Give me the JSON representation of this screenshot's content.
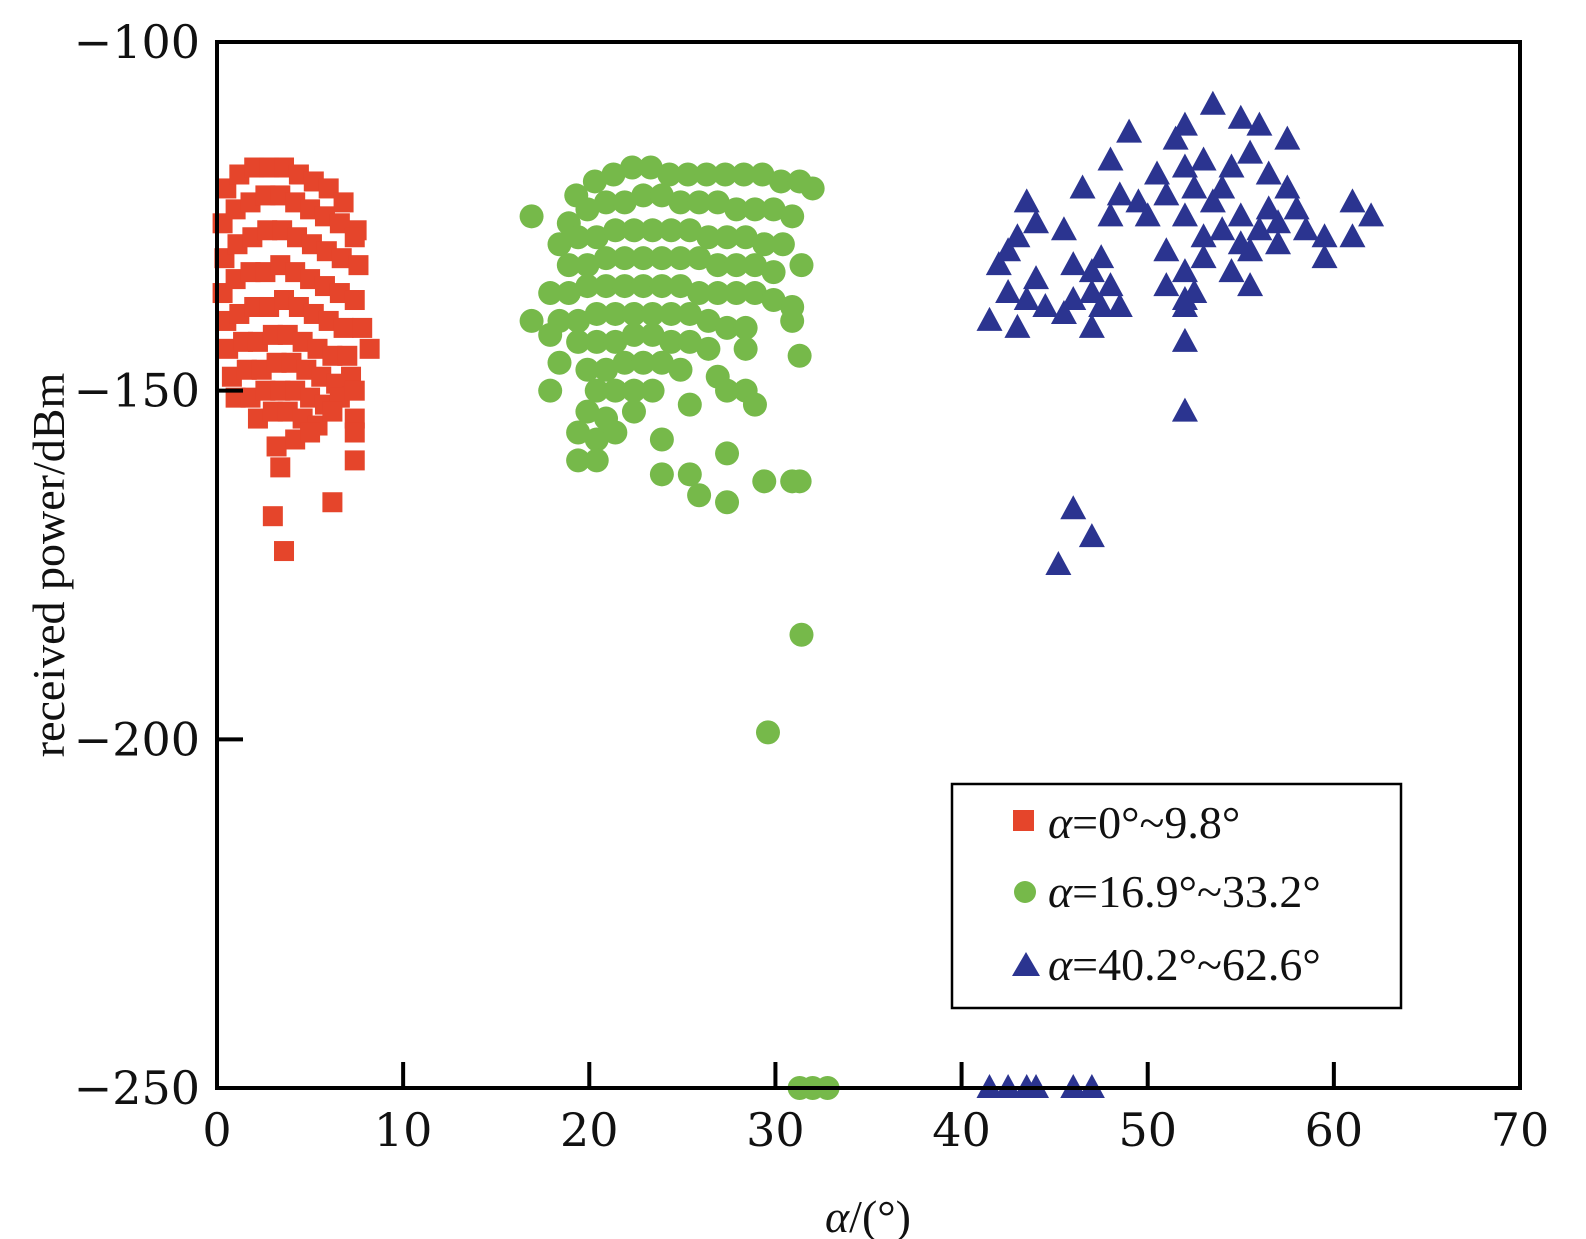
{
  "chart_data": {
    "type": "scatter",
    "title": "",
    "xlabel": "α/(°)",
    "ylabel": "received power/dBm",
    "xlim": [
      0,
      70
    ],
    "ylim": [
      -250,
      -100
    ],
    "xticks": [
      "0",
      "10",
      "20",
      "30",
      "40",
      "50",
      "60",
      "70"
    ],
    "yticks": [
      "−100",
      "−150",
      "−200",
      "−250"
    ],
    "grid": false,
    "legend_position": "lower-right",
    "series": [
      {
        "name": "α=0°~9.8°",
        "marker": "square",
        "color": "#e5452b",
        "points": [
          [
            0.5,
            -121
          ],
          [
            1.2,
            -119
          ],
          [
            2.0,
            -118
          ],
          [
            2.8,
            -118
          ],
          [
            3.6,
            -118
          ],
          [
            4.4,
            -119
          ],
          [
            5.2,
            -120
          ],
          [
            6.0,
            -121
          ],
          [
            6.8,
            -123
          ],
          [
            7.5,
            -127
          ],
          [
            0.3,
            -126
          ],
          [
            1.0,
            -124
          ],
          [
            1.8,
            -123
          ],
          [
            2.6,
            -122
          ],
          [
            3.4,
            -122
          ],
          [
            4.2,
            -123
          ],
          [
            5.0,
            -124
          ],
          [
            5.8,
            -125
          ],
          [
            6.6,
            -126
          ],
          [
            7.4,
            -128
          ],
          [
            0.4,
            -131
          ],
          [
            1.1,
            -129
          ],
          [
            1.9,
            -128
          ],
          [
            2.7,
            -127
          ],
          [
            3.5,
            -127
          ],
          [
            4.3,
            -128
          ],
          [
            5.1,
            -129
          ],
          [
            5.9,
            -130
          ],
          [
            6.7,
            -131
          ],
          [
            7.6,
            -132
          ],
          [
            0.3,
            -136
          ],
          [
            1.0,
            -134
          ],
          [
            1.8,
            -133
          ],
          [
            2.6,
            -133
          ],
          [
            3.4,
            -132
          ],
          [
            4.2,
            -133
          ],
          [
            5.0,
            -134
          ],
          [
            5.8,
            -135
          ],
          [
            6.6,
            -136
          ],
          [
            7.4,
            -137
          ],
          [
            0.5,
            -140
          ],
          [
            1.2,
            -139
          ],
          [
            2.0,
            -138
          ],
          [
            2.8,
            -138
          ],
          [
            3.6,
            -137
          ],
          [
            4.4,
            -138
          ],
          [
            5.2,
            -139
          ],
          [
            6.0,
            -140
          ],
          [
            6.8,
            -141
          ],
          [
            7.8,
            -141
          ],
          [
            0.6,
            -144
          ],
          [
            1.4,
            -143
          ],
          [
            2.2,
            -143
          ],
          [
            3.0,
            -142
          ],
          [
            3.8,
            -142
          ],
          [
            4.6,
            -143
          ],
          [
            5.4,
            -144
          ],
          [
            6.2,
            -145
          ],
          [
            7.0,
            -145
          ],
          [
            8.2,
            -144
          ],
          [
            0.8,
            -148
          ],
          [
            1.6,
            -147
          ],
          [
            2.4,
            -147
          ],
          [
            3.2,
            -146
          ],
          [
            4.0,
            -146
          ],
          [
            4.8,
            -147
          ],
          [
            5.6,
            -148
          ],
          [
            6.4,
            -149
          ],
          [
            7.2,
            -148
          ],
          [
            1.0,
            -151
          ],
          [
            1.8,
            -151
          ],
          [
            2.6,
            -150
          ],
          [
            3.4,
            -150
          ],
          [
            4.2,
            -150
          ],
          [
            5.0,
            -151
          ],
          [
            5.8,
            -152
          ],
          [
            6.6,
            -151
          ],
          [
            7.4,
            -150
          ],
          [
            2.2,
            -154
          ],
          [
            3.0,
            -153
          ],
          [
            3.8,
            -153
          ],
          [
            4.6,
            -154
          ],
          [
            5.4,
            -155
          ],
          [
            6.2,
            -153
          ],
          [
            7.4,
            -154
          ],
          [
            3.2,
            -158
          ],
          [
            4.2,
            -157
          ],
          [
            5.0,
            -156
          ],
          [
            7.4,
            -156
          ],
          [
            7.4,
            -160
          ],
          [
            3.4,
            -161
          ],
          [
            3.0,
            -168
          ],
          [
            6.2,
            -166
          ],
          [
            3.6,
            -173
          ]
        ]
      },
      {
        "name": "α=16.9°~33.2°",
        "marker": "circle",
        "color": "#76b94a",
        "points": [
          [
            19.3,
            -122
          ],
          [
            20.3,
            -120
          ],
          [
            21.3,
            -119
          ],
          [
            22.3,
            -118
          ],
          [
            23.3,
            -118
          ],
          [
            24.3,
            -119
          ],
          [
            25.3,
            -119
          ],
          [
            26.3,
            -119
          ],
          [
            27.3,
            -119
          ],
          [
            28.3,
            -119
          ],
          [
            29.3,
            -119
          ],
          [
            30.3,
            -120
          ],
          [
            31.3,
            -120
          ],
          [
            32.0,
            -121
          ],
          [
            16.9,
            -125
          ],
          [
            18.9,
            -126
          ],
          [
            19.9,
            -124
          ],
          [
            20.9,
            -123
          ],
          [
            21.9,
            -123
          ],
          [
            22.9,
            -122
          ],
          [
            23.9,
            -122
          ],
          [
            24.9,
            -123
          ],
          [
            25.9,
            -123
          ],
          [
            26.9,
            -123
          ],
          [
            27.9,
            -124
          ],
          [
            28.9,
            -124
          ],
          [
            29.9,
            -124
          ],
          [
            30.9,
            -125
          ],
          [
            18.4,
            -129
          ],
          [
            19.4,
            -128
          ],
          [
            20.4,
            -128
          ],
          [
            21.4,
            -127
          ],
          [
            22.4,
            -127
          ],
          [
            23.4,
            -127
          ],
          [
            24.4,
            -127
          ],
          [
            25.4,
            -127
          ],
          [
            26.4,
            -128
          ],
          [
            27.4,
            -128
          ],
          [
            28.4,
            -128
          ],
          [
            29.4,
            -129
          ],
          [
            30.4,
            -129
          ],
          [
            18.9,
            -132
          ],
          [
            19.9,
            -132
          ],
          [
            20.9,
            -131
          ],
          [
            21.9,
            -131
          ],
          [
            22.9,
            -131
          ],
          [
            23.9,
            -131
          ],
          [
            24.9,
            -131
          ],
          [
            25.9,
            -131
          ],
          [
            26.9,
            -132
          ],
          [
            27.9,
            -132
          ],
          [
            28.9,
            -132
          ],
          [
            29.9,
            -133
          ],
          [
            31.4,
            -132
          ],
          [
            17.9,
            -136
          ],
          [
            18.9,
            -136
          ],
          [
            19.9,
            -135
          ],
          [
            20.9,
            -135
          ],
          [
            21.9,
            -135
          ],
          [
            22.9,
            -135
          ],
          [
            23.9,
            -135
          ],
          [
            24.9,
            -135
          ],
          [
            25.9,
            -136
          ],
          [
            26.9,
            -136
          ],
          [
            27.9,
            -136
          ],
          [
            28.9,
            -136
          ],
          [
            29.9,
            -137
          ],
          [
            30.9,
            -138
          ],
          [
            18.4,
            -140
          ],
          [
            19.4,
            -140
          ],
          [
            20.4,
            -139
          ],
          [
            21.4,
            -139
          ],
          [
            22.4,
            -139
          ],
          [
            23.4,
            -139
          ],
          [
            24.4,
            -139
          ],
          [
            25.4,
            -139
          ],
          [
            26.4,
            -140
          ],
          [
            27.4,
            -141
          ],
          [
            28.4,
            -141
          ],
          [
            30.9,
            -140
          ],
          [
            16.9,
            -140
          ],
          [
            17.9,
            -142
          ],
          [
            19.4,
            -143
          ],
          [
            20.4,
            -143
          ],
          [
            21.4,
            -143
          ],
          [
            22.4,
            -142
          ],
          [
            23.4,
            -142
          ],
          [
            24.4,
            -143
          ],
          [
            25.4,
            -143
          ],
          [
            26.4,
            -144
          ],
          [
            28.4,
            -144
          ],
          [
            18.4,
            -146
          ],
          [
            19.9,
            -147
          ],
          [
            20.9,
            -147
          ],
          [
            21.9,
            -146
          ],
          [
            22.9,
            -146
          ],
          [
            23.9,
            -146
          ],
          [
            24.9,
            -147
          ],
          [
            26.9,
            -148
          ],
          [
            31.3,
            -145
          ],
          [
            17.9,
            -150
          ],
          [
            20.4,
            -150
          ],
          [
            21.4,
            -150
          ],
          [
            22.4,
            -150
          ],
          [
            23.4,
            -150
          ],
          [
            27.4,
            -150
          ],
          [
            28.4,
            -150
          ],
          [
            19.9,
            -153
          ],
          [
            20.9,
            -154
          ],
          [
            22.4,
            -153
          ],
          [
            25.4,
            -152
          ],
          [
            28.9,
            -152
          ],
          [
            19.4,
            -156
          ],
          [
            20.4,
            -157
          ],
          [
            21.4,
            -156
          ],
          [
            23.9,
            -157
          ],
          [
            19.4,
            -160
          ],
          [
            20.4,
            -160
          ],
          [
            27.4,
            -159
          ],
          [
            23.9,
            -162
          ],
          [
            25.4,
            -162
          ],
          [
            29.4,
            -163
          ],
          [
            30.9,
            -163
          ],
          [
            31.3,
            -163
          ],
          [
            25.9,
            -165
          ],
          [
            27.4,
            -166
          ],
          [
            31.4,
            -185
          ],
          [
            29.6,
            -199
          ],
          [
            31.3,
            -250
          ],
          [
            32.0,
            -250
          ],
          [
            32.8,
            -250
          ]
        ]
      },
      {
        "name": "α=40.2°~62.6°",
        "marker": "triangle",
        "color": "#2b3490",
        "points": [
          [
            53.5,
            -109
          ],
          [
            55.0,
            -111
          ],
          [
            56.0,
            -112
          ],
          [
            52.0,
            -112
          ],
          [
            49.0,
            -113
          ],
          [
            51.5,
            -114
          ],
          [
            57.5,
            -114
          ],
          [
            55.5,
            -116
          ],
          [
            53.0,
            -117
          ],
          [
            48.0,
            -117
          ],
          [
            52.0,
            -118
          ],
          [
            54.5,
            -118
          ],
          [
            56.5,
            -119
          ],
          [
            50.5,
            -119
          ],
          [
            46.5,
            -121
          ],
          [
            52.5,
            -121
          ],
          [
            54.0,
            -121
          ],
          [
            57.5,
            -121
          ],
          [
            48.5,
            -122
          ],
          [
            51.0,
            -122
          ],
          [
            43.5,
            -123
          ],
          [
            49.5,
            -123
          ],
          [
            53.5,
            -123
          ],
          [
            56.5,
            -124
          ],
          [
            58.0,
            -124
          ],
          [
            61.0,
            -123
          ],
          [
            48.0,
            -125
          ],
          [
            50.0,
            -125
          ],
          [
            52.0,
            -125
          ],
          [
            55.0,
            -125
          ],
          [
            57.0,
            -126
          ],
          [
            62.0,
            -125
          ],
          [
            44.0,
            -126
          ],
          [
            54.0,
            -127
          ],
          [
            56.0,
            -127
          ],
          [
            58.5,
            -127
          ],
          [
            45.5,
            -127
          ],
          [
            59.5,
            -128
          ],
          [
            43.0,
            -128
          ],
          [
            53.0,
            -128
          ],
          [
            55.0,
            -129
          ],
          [
            57.0,
            -129
          ],
          [
            61.0,
            -128
          ],
          [
            42.5,
            -130
          ],
          [
            51.0,
            -130
          ],
          [
            55.5,
            -130
          ],
          [
            47.5,
            -131
          ],
          [
            53.0,
            -131
          ],
          [
            59.5,
            -131
          ],
          [
            42.0,
            -132
          ],
          [
            46.0,
            -132
          ],
          [
            52.0,
            -133
          ],
          [
            47.0,
            -133
          ],
          [
            54.5,
            -133
          ],
          [
            44.0,
            -134
          ],
          [
            55.5,
            -135
          ],
          [
            51.0,
            -135
          ],
          [
            48.0,
            -135
          ],
          [
            42.5,
            -136
          ],
          [
            47.0,
            -136
          ],
          [
            52.5,
            -136
          ],
          [
            46.0,
            -137
          ],
          [
            52.0,
            -137
          ],
          [
            43.5,
            -137
          ],
          [
            44.5,
            -138
          ],
          [
            47.5,
            -138
          ],
          [
            48.5,
            -138
          ],
          [
            52.0,
            -138
          ],
          [
            45.5,
            -139
          ],
          [
            41.5,
            -140
          ],
          [
            43.0,
            -141
          ],
          [
            47.0,
            -141
          ],
          [
            52.0,
            -143
          ],
          [
            52.0,
            -153
          ],
          [
            46.0,
            -167
          ],
          [
            47.0,
            -171
          ],
          [
            45.2,
            -175
          ],
          [
            41.5,
            -250
          ],
          [
            42.5,
            -250
          ],
          [
            43.5,
            -250
          ],
          [
            44.0,
            -250
          ],
          [
            46.0,
            -250
          ],
          [
            47.0,
            -250
          ]
        ]
      }
    ]
  }
}
